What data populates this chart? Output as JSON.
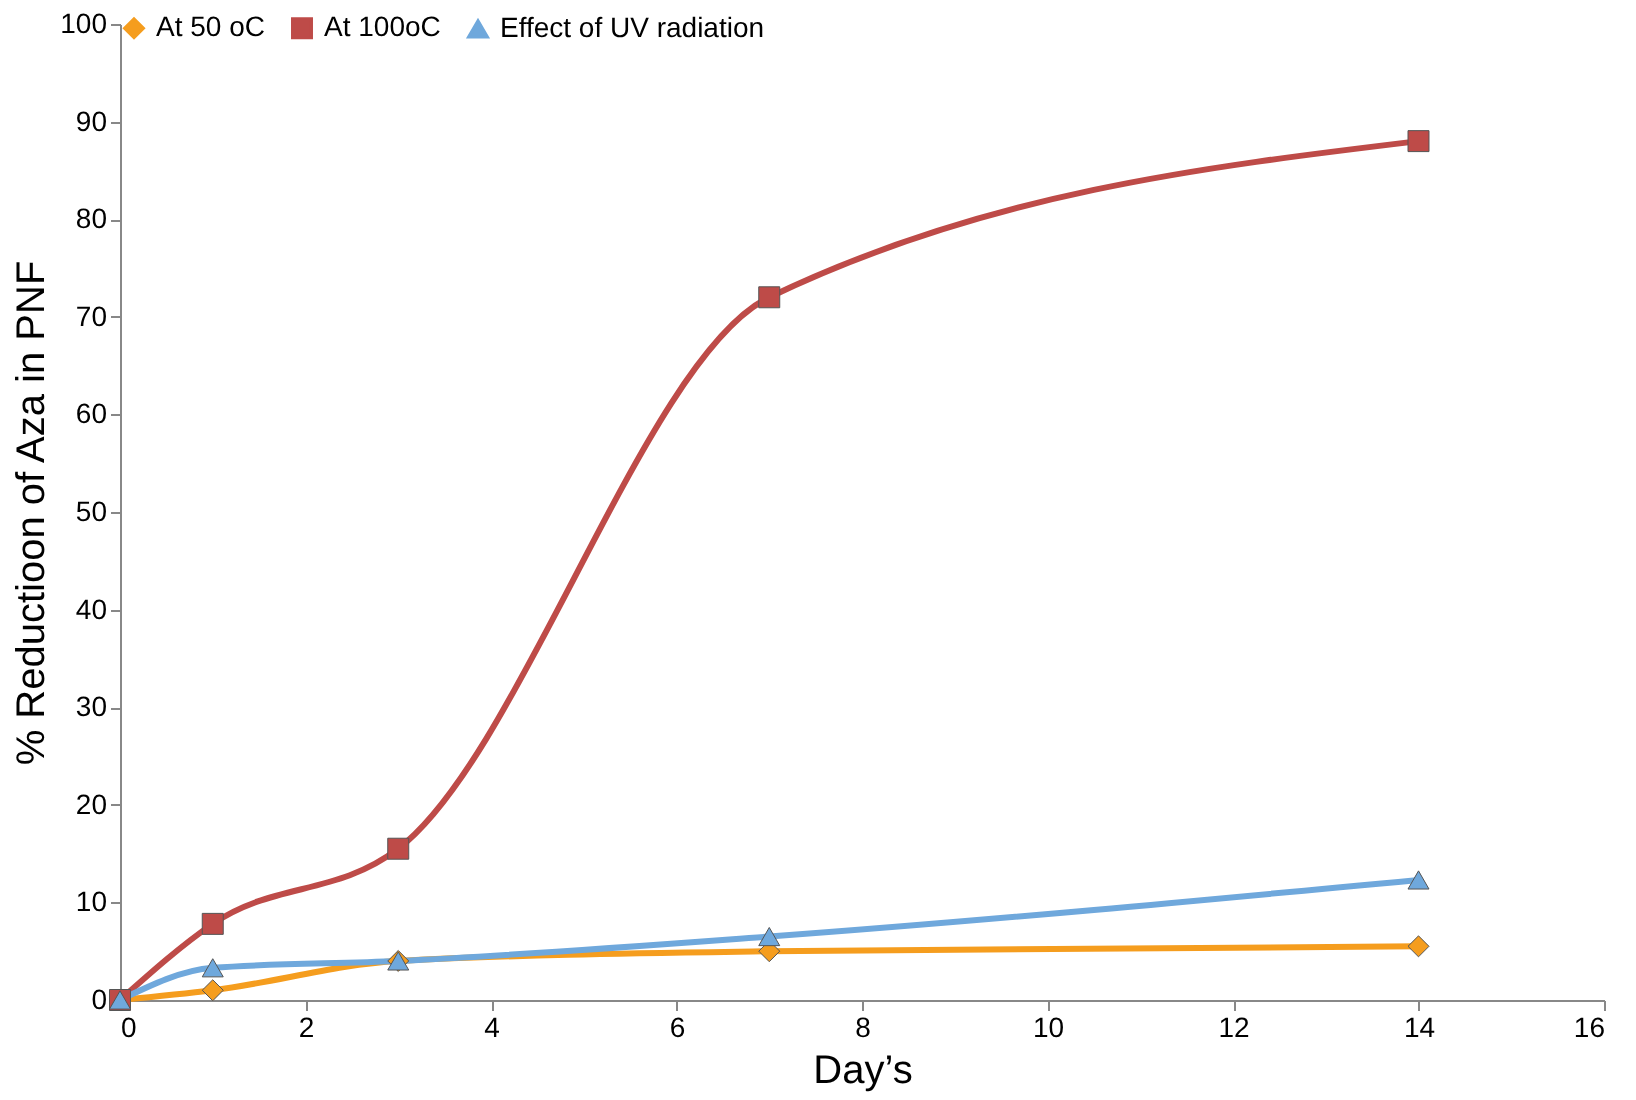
{
  "chart_data": {
    "type": "line",
    "xlabel": "Day’s",
    "ylabel": "% Reductioon of Aza in PNF",
    "x": [
      0,
      1,
      3,
      7,
      14
    ],
    "series": [
      {
        "name": "At 50 oC",
        "color": "#f59d1e",
        "marker": "diamond",
        "values": [
          0,
          1,
          4,
          5,
          5.5
        ]
      },
      {
        "name": "At 100oC",
        "color": "#be4b48",
        "marker": "square",
        "values": [
          0,
          7.8,
          15.5,
          72,
          88
        ]
      },
      {
        "name": "Effect of UV radiation",
        "color": "#6fa8dc",
        "marker": "triangle",
        "values": [
          0,
          3.3,
          4,
          6.5,
          12.3
        ]
      }
    ],
    "xlim": [
      0,
      16
    ],
    "xticks": [
      0,
      2,
      4,
      6,
      8,
      10,
      12,
      14,
      16
    ],
    "ylim": [
      0,
      100
    ],
    "yticks": [
      0,
      10,
      20,
      30,
      40,
      50,
      60,
      70,
      80,
      90,
      100
    ],
    "grid": false,
    "legend": "top",
    "line_style": "solid"
  }
}
